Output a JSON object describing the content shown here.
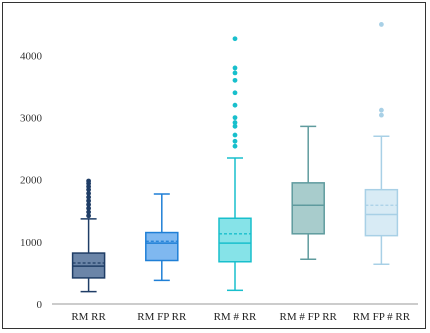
{
  "chart_data": {
    "type": "box",
    "title": "",
    "xlabel": "",
    "ylabel": "",
    "ylim": [
      0,
      4700
    ],
    "yticks": [
      0,
      1000,
      2000,
      3000,
      4000
    ],
    "ytick_labels": [
      "0",
      "1000",
      "2000",
      "3000",
      "4000"
    ],
    "grid": false,
    "legend": "none",
    "categories": [
      "RM RR",
      "RM FP RR",
      "RM # RR",
      "RM # FP RR",
      "RM FP # RR"
    ],
    "boxes": [
      {
        "category": "RM RR",
        "min": 200,
        "q1": 420,
        "median": 610,
        "mean": 660,
        "q3": 820,
        "max": 1370,
        "outliers": [
          1420,
          1480,
          1540,
          1600,
          1660,
          1720,
          1780,
          1840,
          1890,
          1940,
          1980
        ],
        "fill": "#6b85a8",
        "stroke": "#1f3d66"
      },
      {
        "category": "RM FP RR",
        "min": 380,
        "q1": 700,
        "median": 980,
        "mean": 1010,
        "q3": 1150,
        "max": 1770,
        "outliers": [],
        "fill": "#7fb8f0",
        "stroke": "#1f7fd6"
      },
      {
        "category": "RM # RR",
        "min": 220,
        "q1": 680,
        "median": 980,
        "mean": 1130,
        "q3": 1380,
        "max": 2350,
        "outliers": [
          2540,
          2620,
          2720,
          2860,
          2920,
          3000,
          3200,
          3400,
          3600,
          3720,
          3800,
          4270
        ],
        "fill": "#86e3e8",
        "stroke": "#18bfcc"
      },
      {
        "category": "RM # FP RR",
        "min": 720,
        "q1": 1130,
        "median": 1590,
        "mean": 1590,
        "q3": 1950,
        "max": 2860,
        "outliers": [],
        "fill": "#a8cccc",
        "stroke": "#5f9b9e"
      },
      {
        "category": "RM FP # RR",
        "min": 640,
        "q1": 1100,
        "median": 1440,
        "mean": 1590,
        "q3": 1840,
        "max": 2700,
        "outliers": [
          3040,
          3120,
          4500
        ],
        "fill": "#d8ebf5",
        "stroke": "#a8d0e6"
      }
    ]
  }
}
